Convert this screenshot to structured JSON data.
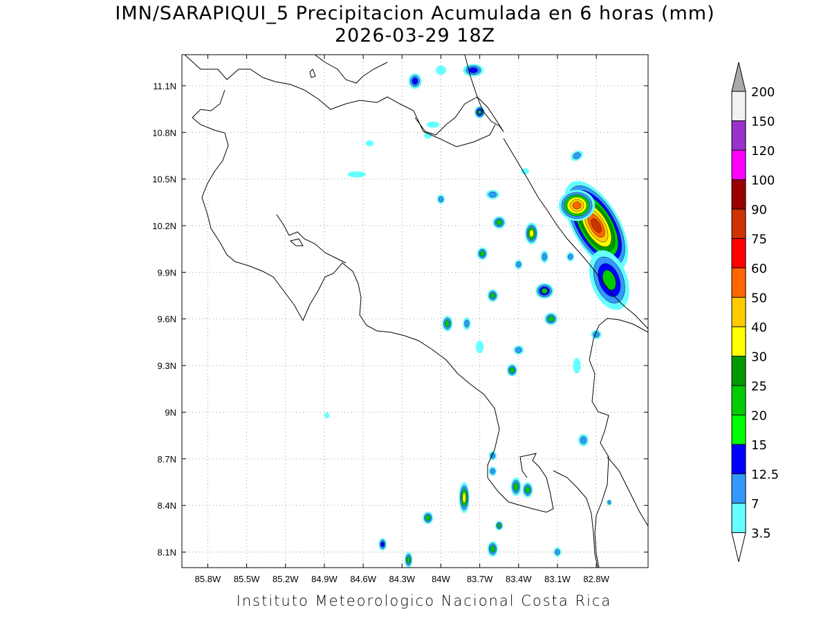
{
  "title_line1": "IMN/SARAPIQUI_5 Precipitacion Acumulada en 6 horas (mm)",
  "title_line2": "2026-03-29 18Z",
  "credit": "Instituto Meteorologico Nacional Costa Rica",
  "map": {
    "lon_range": [
      -86.0,
      -82.4
    ],
    "lat_range": [
      8.0,
      11.3
    ],
    "lon_ticks": [
      {
        "value": -85.8,
        "label": "85.8W"
      },
      {
        "value": -85.5,
        "label": "85.5W"
      },
      {
        "value": -85.2,
        "label": "85.2W"
      },
      {
        "value": -84.9,
        "label": "84.9W"
      },
      {
        "value": -84.6,
        "label": "84.6W"
      },
      {
        "value": -84.3,
        "label": "84.3W"
      },
      {
        "value": -84.0,
        "label": "84W"
      },
      {
        "value": -83.7,
        "label": "83.7W"
      },
      {
        "value": -83.4,
        "label": "83.4W"
      },
      {
        "value": -83.1,
        "label": "83.1W"
      },
      {
        "value": -82.8,
        "label": "82.8W"
      }
    ],
    "lat_ticks": [
      {
        "value": 11.1,
        "label": "11.1N"
      },
      {
        "value": 10.8,
        "label": "10.8N"
      },
      {
        "value": 10.5,
        "label": "10.5N"
      },
      {
        "value": 10.2,
        "label": "10.2N"
      },
      {
        "value": 9.9,
        "label": "9.9N"
      },
      {
        "value": 9.6,
        "label": "9.6N"
      },
      {
        "value": 9.3,
        "label": "9.3N"
      },
      {
        "value": 9.0,
        "label": "9N"
      },
      {
        "value": 8.7,
        "label": "8.7N"
      },
      {
        "value": 8.4,
        "label": "8.4N"
      },
      {
        "value": 8.1,
        "label": "8.1N"
      }
    ],
    "gridlines": true
  },
  "colorbar": {
    "levels": [
      {
        "label": "3.5",
        "color": "#66ffff"
      },
      {
        "label": "7",
        "color": "#3399ff"
      },
      {
        "label": "12.5",
        "color": "#0000ff"
      },
      {
        "label": "15",
        "color": "#00ff00"
      },
      {
        "label": "20",
        "color": "#00cc00"
      },
      {
        "label": "25",
        "color": "#009900"
      },
      {
        "label": "30",
        "color": "#ffff00"
      },
      {
        "label": "40",
        "color": "#ffcc00"
      },
      {
        "label": "50",
        "color": "#ff6600"
      },
      {
        "label": "60",
        "color": "#ff0000"
      },
      {
        "label": "75",
        "color": "#cc3300"
      },
      {
        "label": "90",
        "color": "#990000"
      },
      {
        "label": "100",
        "color": "#ff00ff"
      },
      {
        "label": "120",
        "color": "#9933cc"
      },
      {
        "label": "150",
        "color": "#f2f2f2"
      },
      {
        "label": "200",
        "color": "#aaaaaa"
      }
    ]
  },
  "precip_cells": [
    {
      "lon": -82.8,
      "lat": 10.2,
      "rx": 0.18,
      "ry": 0.32,
      "rot": -30,
      "levels": [
        "#66ffff",
        "#3399ff",
        "#0000ff",
        "#00cc00",
        "#009900",
        "#ffff00",
        "#ffcc00",
        "#ff6600",
        "#cc3300"
      ]
    },
    {
      "lon": -82.95,
      "lat": 10.33,
      "rx": 0.14,
      "ry": 0.1,
      "rot": 0,
      "levels": [
        "#66ffff",
        "#3399ff",
        "#00cc00",
        "#ffff00",
        "#ffcc00",
        "#ff6600"
      ]
    },
    {
      "lon": -82.7,
      "lat": 9.85,
      "rx": 0.14,
      "ry": 0.2,
      "rot": -20,
      "levels": [
        "#66ffff",
        "#3399ff",
        "#0000ff",
        "#00cc00"
      ]
    },
    {
      "lon": -83.3,
      "lat": 10.15,
      "rx": 0.05,
      "ry": 0.07,
      "rot": 0,
      "levels": [
        "#66ffff",
        "#3399ff",
        "#00cc00",
        "#ffff00"
      ]
    },
    {
      "lon": -83.55,
      "lat": 10.22,
      "rx": 0.05,
      "ry": 0.04,
      "rot": 0,
      "levels": [
        "#66ffff",
        "#3399ff",
        "#00cc00"
      ]
    },
    {
      "lon": -83.68,
      "lat": 10.02,
      "rx": 0.04,
      "ry": 0.04,
      "rot": 0,
      "levels": [
        "#66ffff",
        "#3399ff",
        "#00cc00"
      ]
    },
    {
      "lon": -83.2,
      "lat": 9.78,
      "rx": 0.07,
      "ry": 0.05,
      "rot": 0,
      "levels": [
        "#66ffff",
        "#3399ff",
        "#0000ff",
        "#00cc00"
      ]
    },
    {
      "lon": -83.15,
      "lat": 9.6,
      "rx": 0.05,
      "ry": 0.04,
      "rot": 0,
      "levels": [
        "#66ffff",
        "#3399ff",
        "#00cc00"
      ]
    },
    {
      "lon": -83.6,
      "lat": 9.75,
      "rx": 0.04,
      "ry": 0.04,
      "rot": 0,
      "levels": [
        "#66ffff",
        "#3399ff",
        "#00cc00"
      ]
    },
    {
      "lon": -83.95,
      "lat": 9.57,
      "rx": 0.04,
      "ry": 0.05,
      "rot": 0,
      "levels": [
        "#66ffff",
        "#3399ff",
        "#00cc00"
      ]
    },
    {
      "lon": -83.45,
      "lat": 9.27,
      "rx": 0.04,
      "ry": 0.04,
      "rot": 0,
      "levels": [
        "#66ffff",
        "#3399ff",
        "#00cc00"
      ]
    },
    {
      "lon": -83.7,
      "lat": 10.93,
      "rx": 0.04,
      "ry": 0.04,
      "rot": 0,
      "levels": [
        "#66ffff",
        "#3399ff",
        "#0000ff",
        "#00cc00"
      ]
    },
    {
      "lon": -83.75,
      "lat": 11.2,
      "rx": 0.08,
      "ry": 0.04,
      "rot": 0,
      "levels": [
        "#66ffff",
        "#3399ff",
        "#0000ff"
      ]
    },
    {
      "lon": -84.2,
      "lat": 11.13,
      "rx": 0.05,
      "ry": 0.05,
      "rot": 0,
      "levels": [
        "#66ffff",
        "#3399ff",
        "#0000ff"
      ]
    },
    {
      "lon": -83.82,
      "lat": 8.45,
      "rx": 0.04,
      "ry": 0.1,
      "rot": 0,
      "levels": [
        "#66ffff",
        "#3399ff",
        "#00cc00",
        "#ffff00"
      ]
    },
    {
      "lon": -83.42,
      "lat": 8.52,
      "rx": 0.04,
      "ry": 0.06,
      "rot": 0,
      "levels": [
        "#66ffff",
        "#3399ff",
        "#00cc00"
      ]
    },
    {
      "lon": -83.33,
      "lat": 8.5,
      "rx": 0.04,
      "ry": 0.05,
      "rot": 0,
      "levels": [
        "#66ffff",
        "#3399ff",
        "#00cc00"
      ]
    },
    {
      "lon": -84.1,
      "lat": 8.32,
      "rx": 0.04,
      "ry": 0.04,
      "rot": 0,
      "levels": [
        "#66ffff",
        "#3399ff",
        "#00cc00"
      ]
    },
    {
      "lon": -83.6,
      "lat": 8.12,
      "rx": 0.04,
      "ry": 0.05,
      "rot": 0,
      "levels": [
        "#66ffff",
        "#3399ff",
        "#00cc00"
      ]
    },
    {
      "lon": -84.45,
      "lat": 8.15,
      "rx": 0.03,
      "ry": 0.04,
      "rot": 0,
      "levels": [
        "#66ffff",
        "#3399ff",
        "#0000ff"
      ]
    },
    {
      "lon": -84.25,
      "lat": 8.05,
      "rx": 0.03,
      "ry": 0.05,
      "rot": 0,
      "levels": [
        "#66ffff",
        "#3399ff",
        "#00cc00"
      ]
    },
    {
      "lon": -83.55,
      "lat": 8.27,
      "rx": 0.03,
      "ry": 0.03,
      "rot": 0,
      "levels": [
        "#66ffff",
        "#3399ff",
        "#00cc00"
      ]
    },
    {
      "lon": -83.1,
      "lat": 8.1,
      "rx": 0.03,
      "ry": 0.03,
      "rot": 0,
      "levels": [
        "#66ffff",
        "#3399ff"
      ]
    },
    {
      "lon": -82.9,
      "lat": 8.82,
      "rx": 0.04,
      "ry": 0.04,
      "rot": 0,
      "levels": [
        "#66ffff",
        "#3399ff"
      ]
    },
    {
      "lon": -82.8,
      "lat": 9.5,
      "rx": 0.04,
      "ry": 0.03,
      "rot": 0,
      "levels": [
        "#66ffff",
        "#3399ff"
      ]
    },
    {
      "lon": -83.6,
      "lat": 10.4,
      "rx": 0.05,
      "ry": 0.03,
      "rot": 0,
      "levels": [
        "#66ffff",
        "#3399ff"
      ]
    },
    {
      "lon": -84.0,
      "lat": 10.37,
      "rx": 0.03,
      "ry": 0.03,
      "rot": 0,
      "levels": [
        "#66ffff",
        "#3399ff"
      ]
    },
    {
      "lon": -84.65,
      "lat": 10.53,
      "rx": 0.07,
      "ry": 0.02,
      "rot": 0,
      "levels": [
        "#66ffff"
      ]
    },
    {
      "lon": -84.55,
      "lat": 10.73,
      "rx": 0.03,
      "ry": 0.02,
      "rot": 0,
      "levels": [
        "#66ffff"
      ]
    },
    {
      "lon": -84.06,
      "lat": 10.85,
      "rx": 0.05,
      "ry": 0.02,
      "rot": 0,
      "levels": [
        "#66ffff"
      ]
    },
    {
      "lon": -84.1,
      "lat": 10.78,
      "rx": 0.03,
      "ry": 0.02,
      "rot": 0,
      "levels": [
        "#66ffff"
      ]
    },
    {
      "lon": -83.4,
      "lat": 9.4,
      "rx": 0.04,
      "ry": 0.03,
      "rot": 0,
      "levels": [
        "#66ffff",
        "#3399ff"
      ]
    },
    {
      "lon": -83.7,
      "lat": 9.42,
      "rx": 0.03,
      "ry": 0.04,
      "rot": 0,
      "levels": [
        "#66ffff"
      ]
    },
    {
      "lon": -83.8,
      "lat": 9.57,
      "rx": 0.03,
      "ry": 0.04,
      "rot": 0,
      "levels": [
        "#66ffff",
        "#3399ff"
      ]
    },
    {
      "lon": -83.0,
      "lat": 10.0,
      "rx": 0.03,
      "ry": 0.03,
      "rot": 0,
      "levels": [
        "#66ffff",
        "#3399ff"
      ]
    },
    {
      "lon": -83.2,
      "lat": 10.0,
      "rx": 0.03,
      "ry": 0.04,
      "rot": 0,
      "levels": [
        "#66ffff",
        "#3399ff"
      ]
    },
    {
      "lon": -83.4,
      "lat": 9.95,
      "rx": 0.03,
      "ry": 0.03,
      "rot": 0,
      "levels": [
        "#66ffff",
        "#3399ff"
      ]
    },
    {
      "lon": -83.6,
      "lat": 8.72,
      "rx": 0.03,
      "ry": 0.03,
      "rot": 0,
      "levels": [
        "#66ffff",
        "#3399ff"
      ]
    },
    {
      "lon": -83.6,
      "lat": 8.62,
      "rx": 0.03,
      "ry": 0.03,
      "rot": 0,
      "levels": [
        "#66ffff",
        "#3399ff"
      ]
    },
    {
      "lon": -84.88,
      "lat": 8.98,
      "rx": 0.02,
      "ry": 0.02,
      "rot": 0,
      "levels": [
        "#66ffff"
      ]
    },
    {
      "lon": -82.7,
      "lat": 8.42,
      "rx": 0.02,
      "ry": 0.02,
      "rot": 0,
      "levels": [
        "#66ffff",
        "#3399ff"
      ]
    },
    {
      "lon": -82.95,
      "lat": 9.3,
      "rx": 0.03,
      "ry": 0.05,
      "rot": 0,
      "levels": [
        "#66ffff"
      ]
    },
    {
      "lon": -82.95,
      "lat": 10.65,
      "rx": 0.05,
      "ry": 0.03,
      "rot": -30,
      "levels": [
        "#66ffff",
        "#3399ff"
      ]
    },
    {
      "lon": -83.35,
      "lat": 10.55,
      "rx": 0.03,
      "ry": 0.02,
      "rot": 0,
      "levels": [
        "#66ffff"
      ]
    },
    {
      "lon": -84.0,
      "lat": 11.2,
      "rx": 0.04,
      "ry": 0.03,
      "rot": 0,
      "levels": [
        "#66ffff"
      ]
    }
  ]
}
